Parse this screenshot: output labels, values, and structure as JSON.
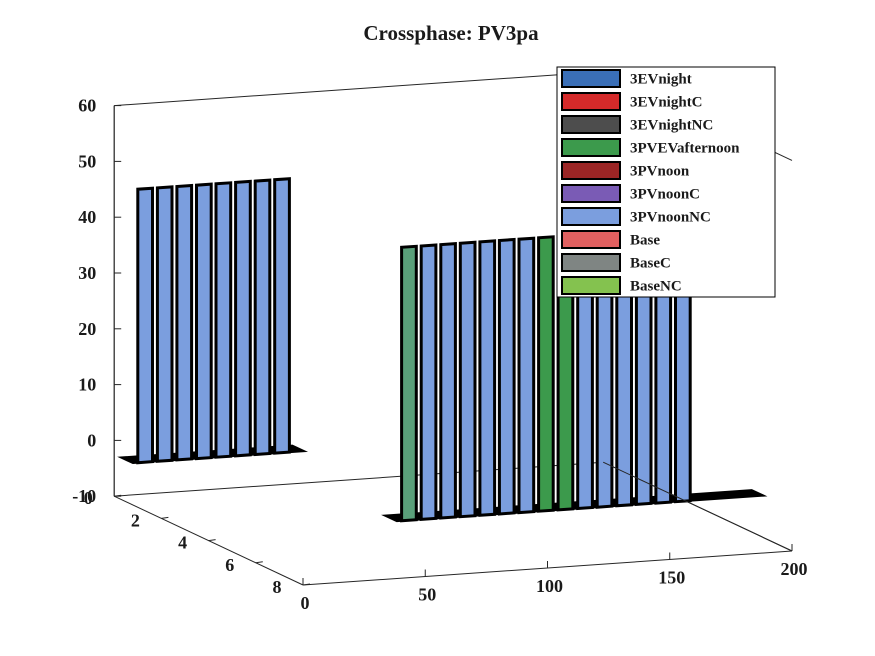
{
  "chart_data": {
    "type": "3d-waterfall",
    "title": "Crossphase: PV3pa",
    "xlabel": "",
    "ylabel": "",
    "zlabel": "",
    "xlim": [
      0,
      200
    ],
    "ylim": [
      0,
      8
    ],
    "zlim": [
      -10,
      60
    ],
    "x_ticks": [
      "0",
      "50",
      "100",
      "150",
      "200"
    ],
    "y_ticks": [
      "0",
      "2",
      "4",
      "6",
      "8"
    ],
    "z_ticks": [
      "-10",
      "0",
      "10",
      "20",
      "30",
      "40",
      "50",
      "60"
    ],
    "x_tick_values": [
      0,
      50,
      100,
      150,
      200
    ],
    "y_tick_values": [
      0,
      2,
      4,
      6,
      8
    ],
    "z_tick_values": [
      -10,
      0,
      10,
      20,
      30,
      40,
      50,
      60
    ],
    "legend_position": "top-right",
    "series": [
      {
        "name": "3EVnight",
        "color": "#3a6fb7"
      },
      {
        "name": "3EVnightC",
        "color": "#d42a2a"
      },
      {
        "name": "3EVnightNC",
        "color": "#4d4d4d"
      },
      {
        "name": "3PVEVafternoon",
        "color": "#3c9a4c"
      },
      {
        "name": "3PVnoon",
        "color": "#9b2525"
      },
      {
        "name": "3PVnoonC",
        "color": "#7a5bb5"
      },
      {
        "name": "3PVnoonNC",
        "color": "#7b9ede"
      },
      {
        "name": "Base",
        "color": "#e06060"
      },
      {
        "name": "BaseC",
        "color": "#7f8583"
      },
      {
        "name": "BaseNC",
        "color": "#84c24f"
      }
    ],
    "baseline_value": -2,
    "peak_value": 47,
    "slices": [
      {
        "y": 1,
        "pulses": [
          0,
          8,
          16,
          24,
          32,
          40,
          48,
          56
        ]
      },
      {
        "y": 7,
        "pulses": [
          50,
          58,
          66,
          74,
          82,
          90,
          98,
          106,
          114,
          122,
          130,
          138,
          146,
          154,
          162
        ]
      }
    ]
  }
}
